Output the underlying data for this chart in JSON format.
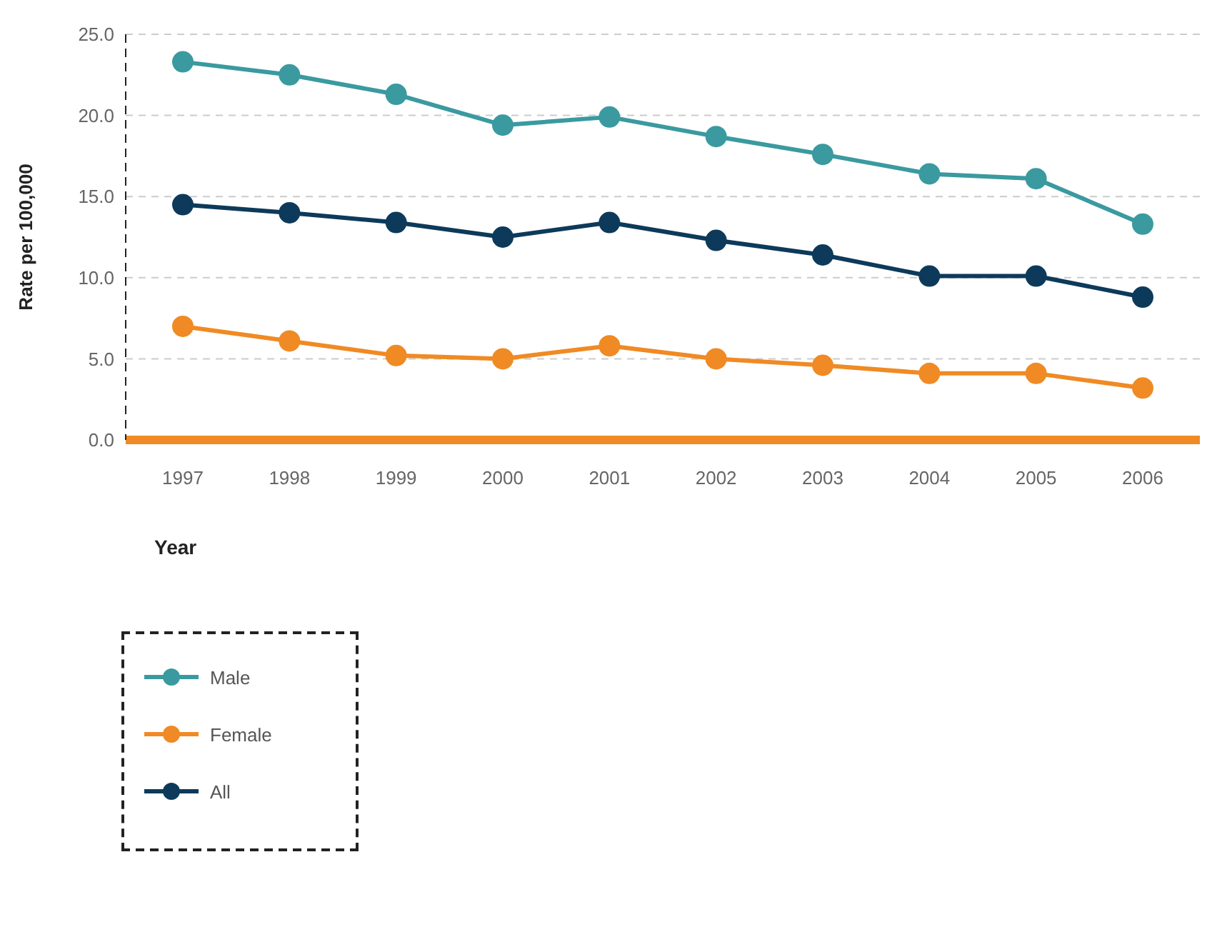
{
  "chart_data": {
    "type": "line",
    "xlabel": "Year",
    "ylabel": "Rate per 100,000",
    "categories": [
      "1997",
      "1998",
      "1999",
      "2000",
      "2001",
      "2002",
      "2003",
      "2004",
      "2005",
      "2006"
    ],
    "series": [
      {
        "name": "Male",
        "color": "#3a9aa0",
        "values": [
          23.3,
          22.5,
          21.3,
          19.4,
          19.9,
          18.7,
          17.6,
          16.4,
          16.1,
          13.3
        ]
      },
      {
        "name": "Female",
        "color": "#f08a24",
        "values": [
          7.0,
          6.1,
          5.2,
          5.0,
          5.8,
          5.0,
          4.6,
          4.1,
          4.1,
          3.2
        ]
      },
      {
        "name": "All",
        "color": "#0d3a5a",
        "values": [
          14.5,
          14.0,
          13.4,
          12.5,
          13.4,
          12.3,
          11.4,
          10.1,
          10.1,
          8.8
        ]
      }
    ],
    "ylim": [
      0,
      25
    ],
    "yticks": [
      {
        "value": 0,
        "label": "0.0"
      },
      {
        "value": 5,
        "label": "5.0"
      },
      {
        "value": 10,
        "label": "10.0"
      },
      {
        "value": 15,
        "label": "15.0"
      },
      {
        "value": 20,
        "label": "20.0"
      },
      {
        "value": 25,
        "label": "25.0"
      }
    ],
    "grid": "y",
    "legend": "bottom left",
    "marker": "circle",
    "line_style": "solid"
  }
}
